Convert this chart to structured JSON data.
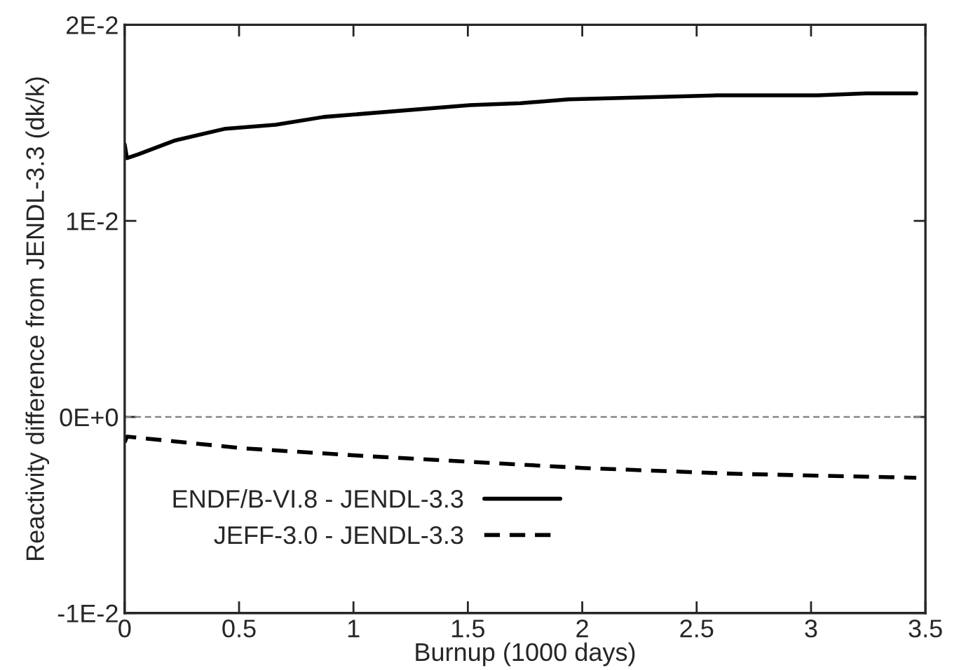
{
  "chart_data": {
    "type": "line",
    "xlabel": "Burnup (1000 days)",
    "ylabel": "Reactivity difference from JENDL-3.3 (dk/k)",
    "xlim": [
      0,
      3.5
    ],
    "xticks": [
      0,
      0.5,
      1,
      1.5,
      2,
      2.5,
      3,
      3.5
    ],
    "ylim": [
      -0.01,
      0.02
    ],
    "yticks": [
      {
        "value": -0.01,
        "label": "-1E-2"
      },
      {
        "value": 0,
        "label": "0E+0"
      },
      {
        "value": 0.01,
        "label": "1E-2"
      },
      {
        "value": 0.02,
        "label": "2E-2"
      }
    ],
    "ref_lines": [
      {
        "axis": "y",
        "value": 0,
        "label": null,
        "color": "#808080",
        "line_style": "dashed"
      }
    ],
    "legend": "bottom left",
    "grid": false,
    "series": [
      {
        "name": "ENDF/B-VI.8 - JENDL-3.3",
        "color": "#000000",
        "line_style": "solid",
        "x": [
          0,
          0.01,
          0.06,
          0.22,
          0.44,
          0.66,
          0.87,
          1.51,
          1.73,
          1.94,
          2.59,
          3.03,
          3.24,
          3.46
        ],
        "values": [
          0.0139,
          0.0132,
          0.0134,
          0.0141,
          0.0147,
          0.0149,
          0.0153,
          0.0159,
          0.016,
          0.0162,
          0.0164,
          0.0164,
          0.0165,
          0.0165
        ]
      },
      {
        "name": "JEFF-3.0 - JENDL-3.3",
        "color": "#000000",
        "line_style": "dashed",
        "x": [
          0,
          0.01,
          0.52,
          1.06,
          2.0,
          2.67,
          3.46
        ],
        "values": [
          -0.0013,
          -0.001,
          -0.0016,
          -0.002,
          -0.0026,
          -0.0029,
          -0.0031
        ]
      }
    ]
  }
}
